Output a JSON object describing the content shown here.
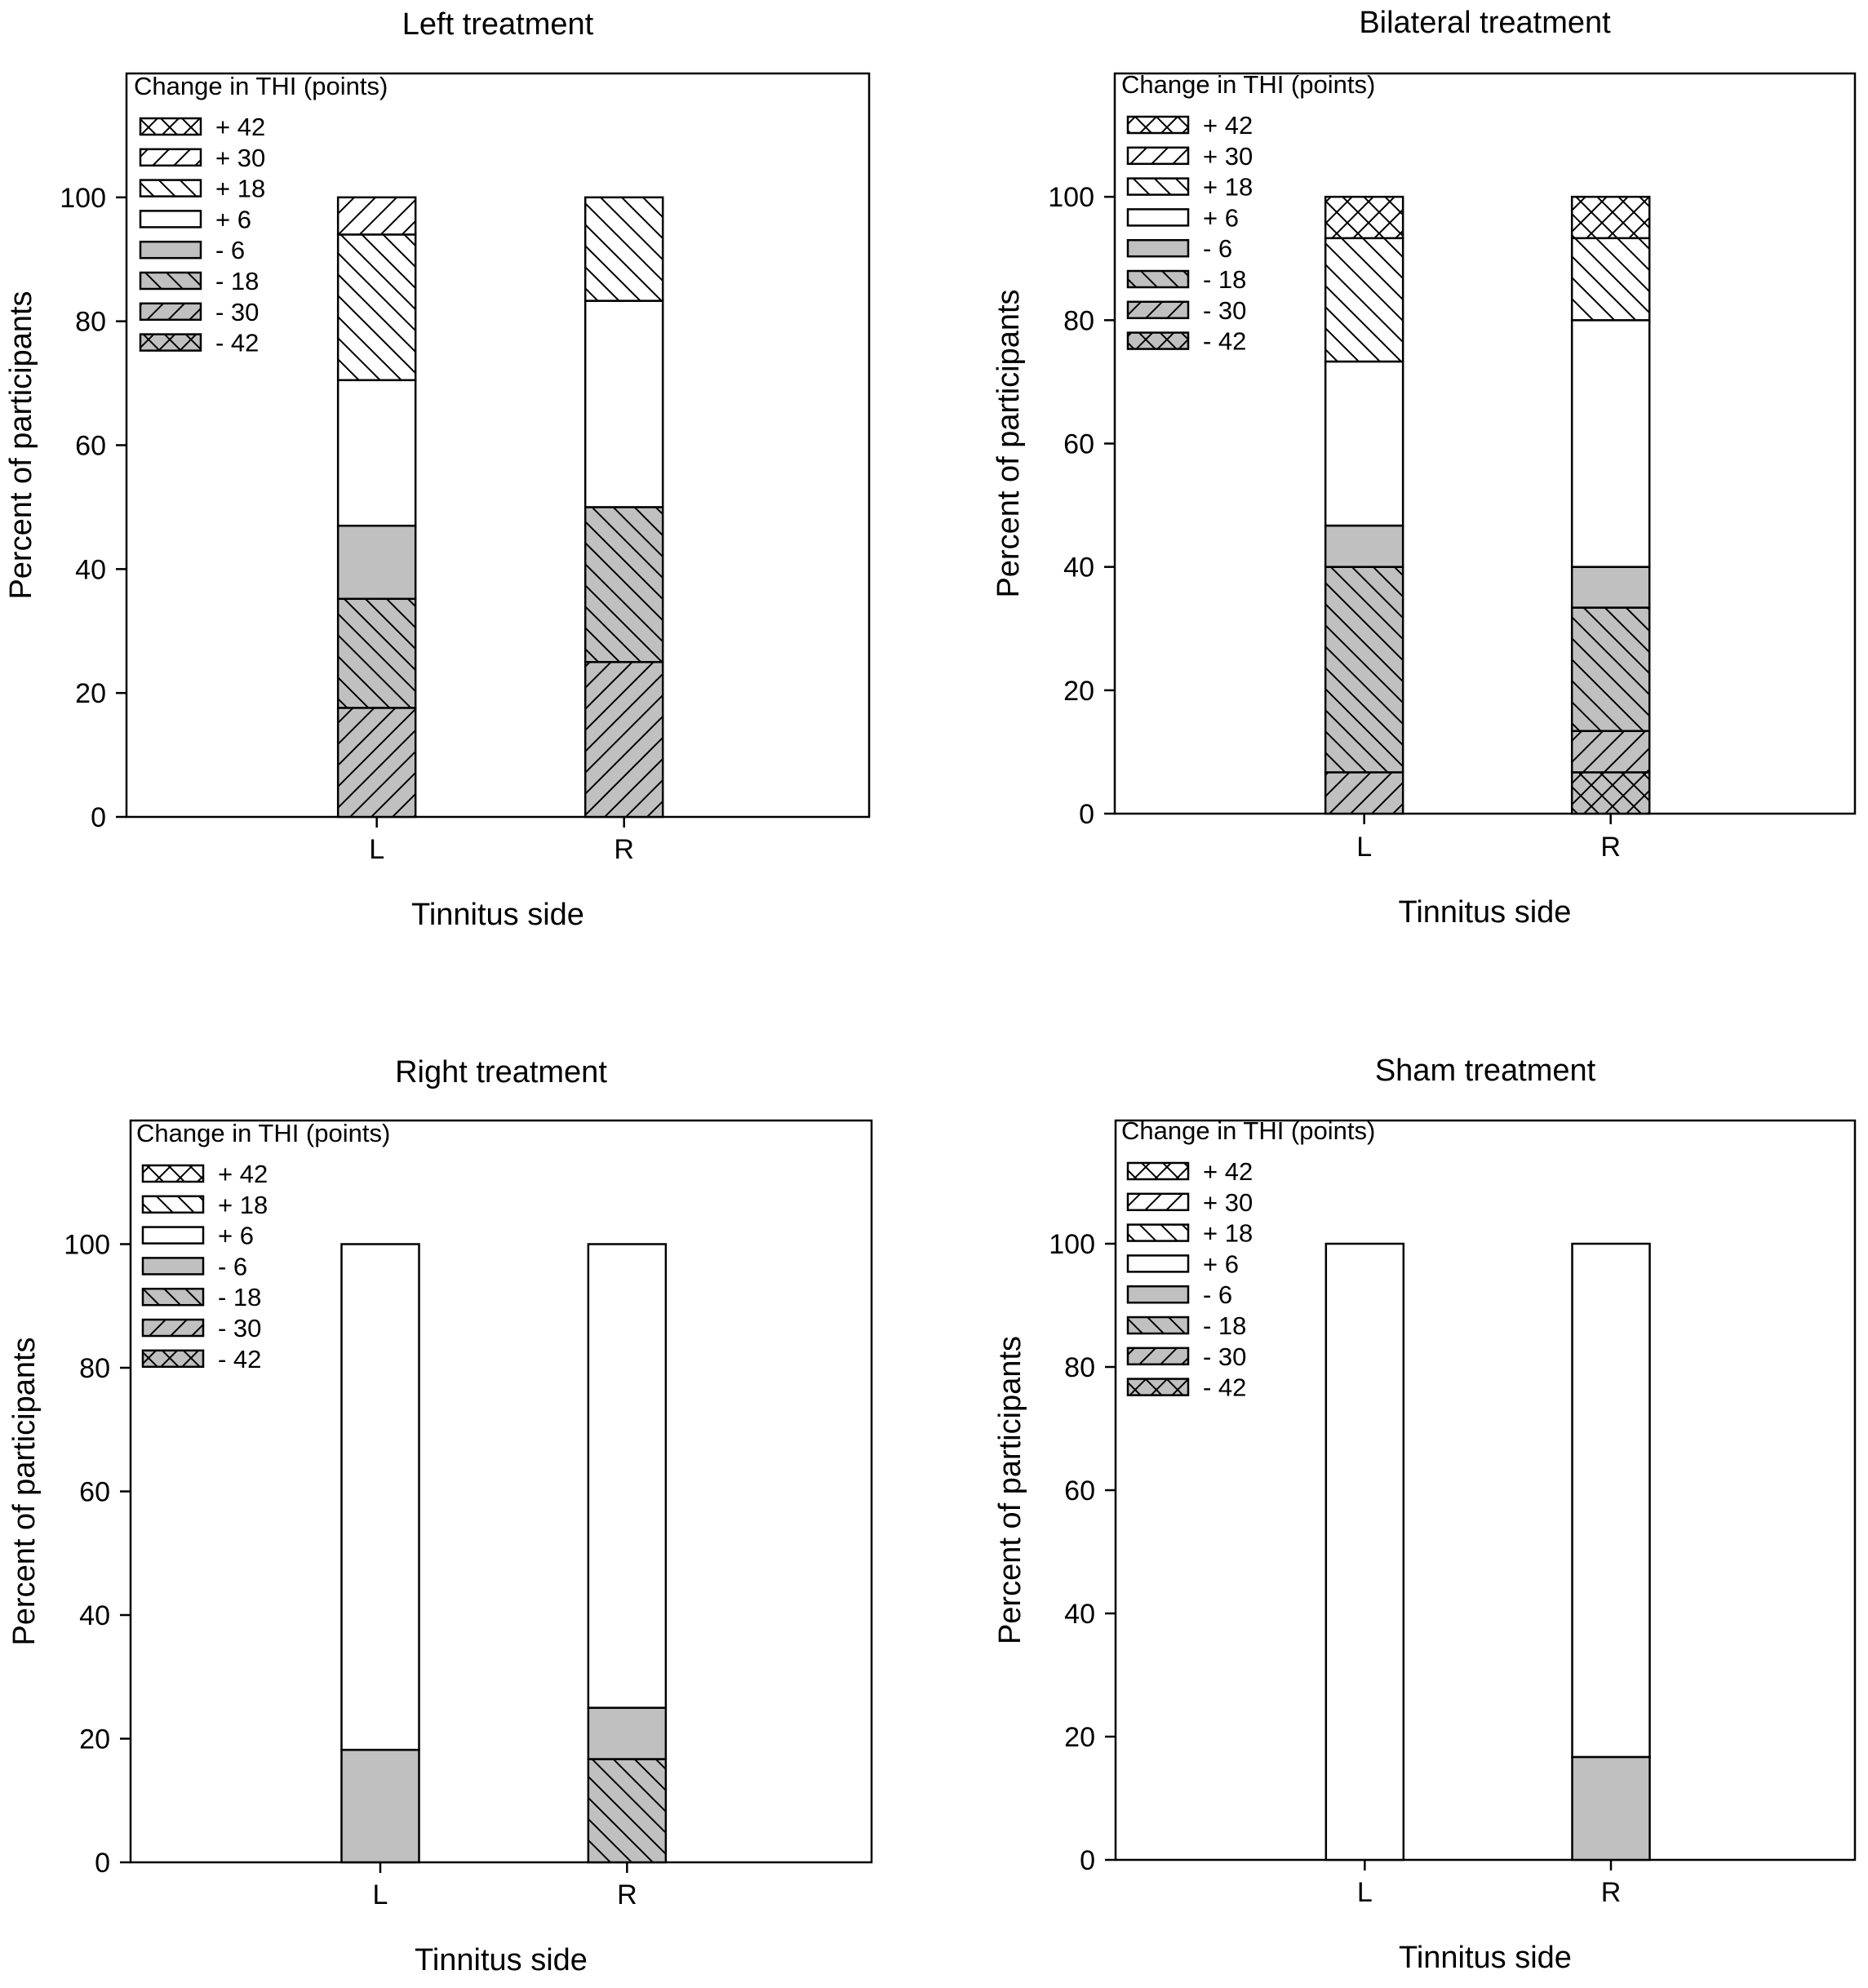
{
  "legend_title": "Change in THI (points)",
  "x_axis_label": "Tinnitus side",
  "y_axis_label": "Percent of participants",
  "colors": {
    "gain": "#ffffff",
    "loss": "#c0c0c0",
    "line": "#000000"
  },
  "chart_data": [
    {
      "type": "bar",
      "stacked": true,
      "title": "Left treatment",
      "xlabel": "Tinnitus side",
      "ylabel": "Percent of participants",
      "categories": [
        "L",
        "R"
      ],
      "ylim": [
        0,
        120
      ],
      "yticks": [
        0,
        20,
        40,
        60,
        80,
        100
      ],
      "legend": [
        "+ 42",
        "+ 30",
        "+ 18",
        "+ 6",
        "- 6",
        "- 18",
        "- 30",
        "- 42"
      ],
      "series": [
        {
          "name": "- 42",
          "values": [
            0,
            0
          ]
        },
        {
          "name": "- 30",
          "values": [
            17.6,
            25
          ]
        },
        {
          "name": "- 18",
          "values": [
            17.6,
            25
          ]
        },
        {
          "name": "- 6",
          "values": [
            11.8,
            0
          ]
        },
        {
          "name": "+ 6",
          "values": [
            23.5,
            33.3
          ]
        },
        {
          "name": "+ 18",
          "values": [
            23.5,
            16.7
          ]
        },
        {
          "name": "+ 30",
          "values": [
            6,
            0
          ]
        },
        {
          "name": "+ 42",
          "values": [
            0,
            0
          ]
        }
      ]
    },
    {
      "type": "bar",
      "stacked": true,
      "title": "Bilateral treatment",
      "xlabel": "Tinnitus side",
      "ylabel": "Percent of participants",
      "categories": [
        "L",
        "R"
      ],
      "ylim": [
        0,
        120
      ],
      "yticks": [
        0,
        20,
        40,
        60,
        80,
        100
      ],
      "legend": [
        "+ 42",
        "+ 30",
        "+ 18",
        "+ 6",
        "- 6",
        "- 18",
        "- 30",
        "- 42"
      ],
      "series": [
        {
          "name": "- 42",
          "values": [
            0,
            6.7
          ]
        },
        {
          "name": "- 30",
          "values": [
            6.7,
            6.7
          ]
        },
        {
          "name": "- 18",
          "values": [
            33.3,
            20
          ]
        },
        {
          "name": "- 6",
          "values": [
            6.7,
            6.6
          ]
        },
        {
          "name": "+ 6",
          "values": [
            26.6,
            40
          ]
        },
        {
          "name": "+ 18",
          "values": [
            20,
            13.3
          ]
        },
        {
          "name": "+ 30",
          "values": [
            0,
            0
          ]
        },
        {
          "name": "+ 42",
          "values": [
            6.7,
            6.7
          ]
        }
      ]
    },
    {
      "type": "bar",
      "stacked": true,
      "title": "Right treatment",
      "xlabel": "Tinnitus side",
      "ylabel": "Percent of participants",
      "categories": [
        "L",
        "R"
      ],
      "ylim": [
        0,
        120
      ],
      "yticks": [
        0,
        20,
        40,
        60,
        80,
        100
      ],
      "legend": [
        "+ 42",
        "+ 18",
        "+ 6",
        "- 6",
        "- 18",
        "- 30",
        "- 42"
      ],
      "series": [
        {
          "name": "- 42",
          "values": [
            0,
            0
          ]
        },
        {
          "name": "- 30",
          "values": [
            0,
            0
          ]
        },
        {
          "name": "- 18",
          "values": [
            0,
            16.7
          ]
        },
        {
          "name": "- 6",
          "values": [
            18.2,
            8.3
          ]
        },
        {
          "name": "+ 6",
          "values": [
            81.8,
            75
          ]
        },
        {
          "name": "+ 18",
          "values": [
            0,
            0
          ]
        },
        {
          "name": "+ 42",
          "values": [
            0,
            0
          ]
        }
      ]
    },
    {
      "type": "bar",
      "stacked": true,
      "title": "Sham treatment",
      "xlabel": "Tinnitus side",
      "ylabel": "Percent of participants",
      "categories": [
        "L",
        "R"
      ],
      "ylim": [
        0,
        120
      ],
      "yticks": [
        0,
        20,
        40,
        60,
        80,
        100
      ],
      "legend": [
        "+ 42",
        "+ 30",
        "+ 18",
        "+ 6",
        "- 6",
        "- 18",
        "- 30",
        "- 42"
      ],
      "series": [
        {
          "name": "- 42",
          "values": [
            0,
            0
          ]
        },
        {
          "name": "- 30",
          "values": [
            0,
            0
          ]
        },
        {
          "name": "- 18",
          "values": [
            0,
            0
          ]
        },
        {
          "name": "- 6",
          "values": [
            0,
            16.7
          ]
        },
        {
          "name": "+ 6",
          "values": [
            100,
            83.3
          ]
        },
        {
          "name": "+ 18",
          "values": [
            0,
            0
          ]
        },
        {
          "name": "+ 30",
          "values": [
            0,
            0
          ]
        },
        {
          "name": "+ 42",
          "values": [
            0,
            0
          ]
        }
      ]
    }
  ]
}
